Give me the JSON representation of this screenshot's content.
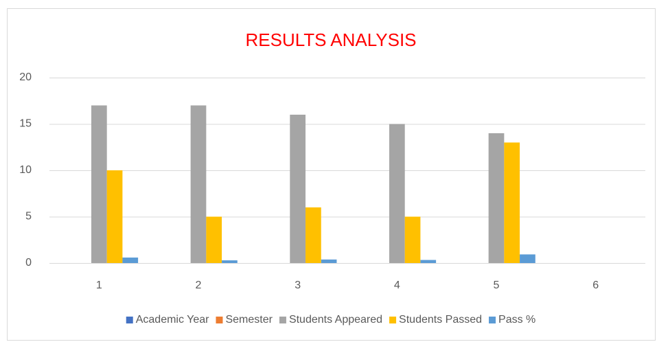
{
  "chart_data": {
    "type": "bar",
    "title": "RESULTS ANALYSIS",
    "categories": [
      "1",
      "2",
      "3",
      "4",
      "5",
      "6"
    ],
    "series": [
      {
        "name": "Academic Year",
        "color": "#4472c4",
        "values": [
          0,
          0,
          0,
          0,
          0,
          null
        ]
      },
      {
        "name": "Semester",
        "color": "#ed7d31",
        "values": [
          0,
          0,
          0,
          0,
          0,
          null
        ]
      },
      {
        "name": "Students Appeared",
        "color": "#a5a5a5",
        "values": [
          17,
          17,
          16,
          15,
          14,
          null
        ]
      },
      {
        "name": "Students Passed",
        "color": "#ffc000",
        "values": [
          10,
          5,
          6,
          5,
          13,
          null
        ]
      },
      {
        "name": "Pass %",
        "color": "#5b9bd5",
        "values": [
          0.59,
          0.29,
          0.38,
          0.33,
          0.93,
          null
        ]
      }
    ],
    "ylim": [
      0,
      20
    ],
    "yticks": [
      0,
      5,
      10,
      15,
      20
    ],
    "grid": true,
    "legend": "bottom"
  }
}
